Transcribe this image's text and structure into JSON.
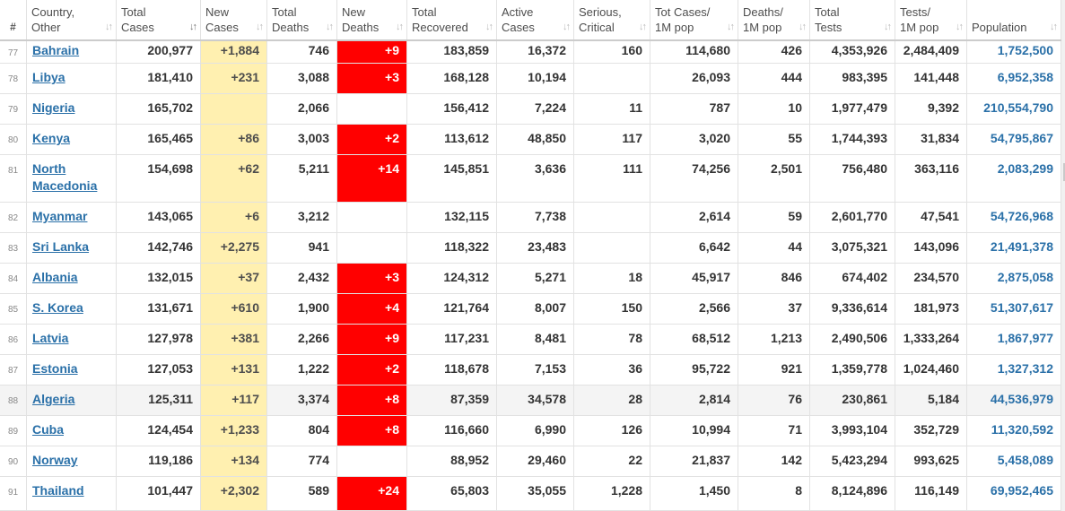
{
  "header": {
    "num": "#",
    "columns": [
      {
        "l1": "Country,",
        "l2": "Other"
      },
      {
        "l1": "Total",
        "l2": "Cases"
      },
      {
        "l1": "New",
        "l2": "Cases"
      },
      {
        "l1": "Total",
        "l2": "Deaths"
      },
      {
        "l1": "New",
        "l2": "Deaths"
      },
      {
        "l1": "Total",
        "l2": "Recovered"
      },
      {
        "l1": "Active",
        "l2": "Cases"
      },
      {
        "l1": "Serious,",
        "l2": "Critical"
      },
      {
        "l1": "Tot Cases/",
        "l2": "1M pop"
      },
      {
        "l1": "Deaths/",
        "l2": "1M pop"
      },
      {
        "l1": "Total",
        "l2": "Tests"
      },
      {
        "l1": "Tests/",
        "l2": "1M pop"
      },
      {
        "l1": "Population",
        "l2": ""
      }
    ],
    "sort_icon": "sort-arrows-icon"
  },
  "rows": [
    {
      "num": "77",
      "country": "Bahrain",
      "total_cases": "200,977",
      "new_cases": "+1,884",
      "total_deaths": "746",
      "new_deaths": "+9",
      "recovered": "183,859",
      "active": "16,372",
      "critical": "160",
      "cases_per_m": "114,680",
      "deaths_per_m": "426",
      "tests": "4,353,926",
      "tests_per_m": "2,484,409",
      "population": "1,752,500"
    },
    {
      "num": "78",
      "country": "Libya",
      "total_cases": "181,410",
      "new_cases": "+231",
      "total_deaths": "3,088",
      "new_deaths": "+3",
      "recovered": "168,128",
      "active": "10,194",
      "critical": "",
      "cases_per_m": "26,093",
      "deaths_per_m": "444",
      "tests": "983,395",
      "tests_per_m": "141,448",
      "population": "6,952,358"
    },
    {
      "num": "79",
      "country": "Nigeria",
      "total_cases": "165,702",
      "new_cases": "",
      "total_deaths": "2,066",
      "new_deaths": "",
      "recovered": "156,412",
      "active": "7,224",
      "critical": "11",
      "cases_per_m": "787",
      "deaths_per_m": "10",
      "tests": "1,977,479",
      "tests_per_m": "9,392",
      "population": "210,554,790"
    },
    {
      "num": "80",
      "country": "Kenya",
      "total_cases": "165,465",
      "new_cases": "+86",
      "total_deaths": "3,003",
      "new_deaths": "+2",
      "recovered": "113,612",
      "active": "48,850",
      "critical": "117",
      "cases_per_m": "3,020",
      "deaths_per_m": "55",
      "tests": "1,744,393",
      "tests_per_m": "31,834",
      "population": "54,795,867"
    },
    {
      "num": "81",
      "country": "North Macedonia",
      "total_cases": "154,698",
      "new_cases": "+62",
      "total_deaths": "5,211",
      "new_deaths": "+14",
      "recovered": "145,851",
      "active": "3,636",
      "critical": "111",
      "cases_per_m": "74,256",
      "deaths_per_m": "2,501",
      "tests": "756,480",
      "tests_per_m": "363,116",
      "population": "2,083,299"
    },
    {
      "num": "82",
      "country": "Myanmar",
      "total_cases": "143,065",
      "new_cases": "+6",
      "total_deaths": "3,212",
      "new_deaths": "",
      "recovered": "132,115",
      "active": "7,738",
      "critical": "",
      "cases_per_m": "2,614",
      "deaths_per_m": "59",
      "tests": "2,601,770",
      "tests_per_m": "47,541",
      "population": "54,726,968"
    },
    {
      "num": "83",
      "country": "Sri Lanka",
      "total_cases": "142,746",
      "new_cases": "+2,275",
      "total_deaths": "941",
      "new_deaths": "",
      "recovered": "118,322",
      "active": "23,483",
      "critical": "",
      "cases_per_m": "6,642",
      "deaths_per_m": "44",
      "tests": "3,075,321",
      "tests_per_m": "143,096",
      "population": "21,491,378"
    },
    {
      "num": "84",
      "country": "Albania",
      "total_cases": "132,015",
      "new_cases": "+37",
      "total_deaths": "2,432",
      "new_deaths": "+3",
      "recovered": "124,312",
      "active": "5,271",
      "critical": "18",
      "cases_per_m": "45,917",
      "deaths_per_m": "846",
      "tests": "674,402",
      "tests_per_m": "234,570",
      "population": "2,875,058"
    },
    {
      "num": "85",
      "country": "S. Korea",
      "total_cases": "131,671",
      "new_cases": "+610",
      "total_deaths": "1,900",
      "new_deaths": "+4",
      "recovered": "121,764",
      "active": "8,007",
      "critical": "150",
      "cases_per_m": "2,566",
      "deaths_per_m": "37",
      "tests": "9,336,614",
      "tests_per_m": "181,973",
      "population": "51,307,617"
    },
    {
      "num": "86",
      "country": "Latvia",
      "total_cases": "127,978",
      "new_cases": "+381",
      "total_deaths": "2,266",
      "new_deaths": "+9",
      "recovered": "117,231",
      "active": "8,481",
      "critical": "78",
      "cases_per_m": "68,512",
      "deaths_per_m": "1,213",
      "tests": "2,490,506",
      "tests_per_m": "1,333,264",
      "population": "1,867,977"
    },
    {
      "num": "87",
      "country": "Estonia",
      "total_cases": "127,053",
      "new_cases": "+131",
      "total_deaths": "1,222",
      "new_deaths": "+2",
      "recovered": "118,678",
      "active": "7,153",
      "critical": "36",
      "cases_per_m": "95,722",
      "deaths_per_m": "921",
      "tests": "1,359,778",
      "tests_per_m": "1,024,460",
      "population": "1,327,312"
    },
    {
      "num": "88",
      "country": "Algeria",
      "total_cases": "125,311",
      "new_cases": "+117",
      "total_deaths": "3,374",
      "new_deaths": "+8",
      "recovered": "87,359",
      "active": "34,578",
      "critical": "28",
      "cases_per_m": "2,814",
      "deaths_per_m": "76",
      "tests": "230,861",
      "tests_per_m": "5,184",
      "population": "44,536,979"
    },
    {
      "num": "89",
      "country": "Cuba",
      "total_cases": "124,454",
      "new_cases": "+1,233",
      "total_deaths": "804",
      "new_deaths": "+8",
      "recovered": "116,660",
      "active": "6,990",
      "critical": "126",
      "cases_per_m": "10,994",
      "deaths_per_m": "71",
      "tests": "3,993,104",
      "tests_per_m": "352,729",
      "population": "11,320,592"
    },
    {
      "num": "90",
      "country": "Norway",
      "total_cases": "119,186",
      "new_cases": "+134",
      "total_deaths": "774",
      "new_deaths": "",
      "recovered": "88,952",
      "active": "29,460",
      "critical": "22",
      "cases_per_m": "21,837",
      "deaths_per_m": "142",
      "tests": "5,423,294",
      "tests_per_m": "993,625",
      "population": "5,458,089"
    },
    {
      "num": "91",
      "country": "Thailand",
      "total_cases": "101,447",
      "new_cases": "+2,302",
      "total_deaths": "589",
      "new_deaths": "+24",
      "recovered": "65,803",
      "active": "35,055",
      "critical": "1,228",
      "cases_per_m": "1,450",
      "deaths_per_m": "8",
      "tests": "8,124,896",
      "tests_per_m": "116,149",
      "population": "69,952,465"
    }
  ],
  "colors": {
    "new_cases_bg": "#fff0b0",
    "new_deaths_bg": "#ff0000",
    "link": "#2a70a8"
  }
}
